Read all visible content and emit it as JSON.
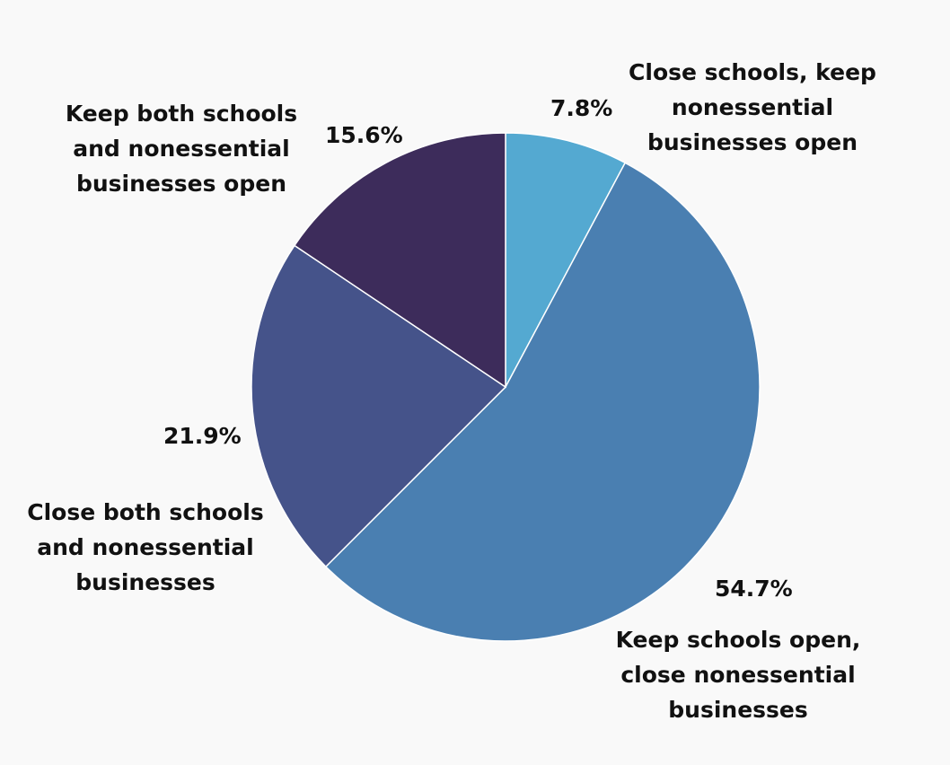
{
  "chart_data": {
    "type": "pie",
    "start_angle": "12 o'clock",
    "direction": "clockwise",
    "slices": [
      {
        "label": "Close schools, keep\nnonessential\nbusinesses open",
        "value": 7.8,
        "value_label": "7.8%",
        "color": "#54a9d1"
      },
      {
        "label": "Keep schools open,\nclose nonessential\nbusinesses",
        "value": 54.7,
        "value_label": "54.7%",
        "color": "#4a7fb1"
      },
      {
        "label": "Close both schools\nand nonessential\nbusinesses",
        "value": 21.9,
        "value_label": "21.9%",
        "color": "#45538a"
      },
      {
        "label": "Keep both schools\nand nonessential\nbusinesses open",
        "value": 15.6,
        "value_label": "15.6%",
        "color": "#3d2c5b"
      }
    ]
  }
}
